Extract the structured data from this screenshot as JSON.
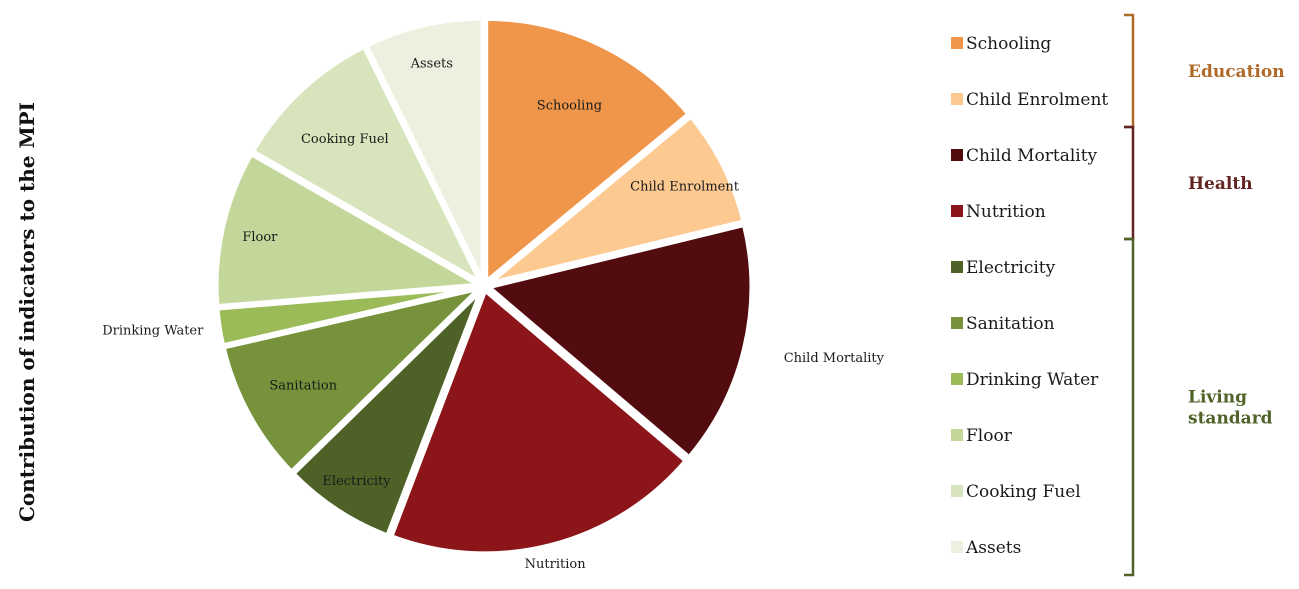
{
  "chart_data": {
    "type": "pie",
    "ylabel": "Contribution of indicators to the MPI",
    "legend_position": "right",
    "slices": [
      {
        "name": "Schooling",
        "value": 14.0,
        "color": "#f0964b"
      },
      {
        "name": "Child Enrolment",
        "value": 7.2,
        "color": "#fcc991"
      },
      {
        "name": "Child Mortality",
        "value": 15.0,
        "color": "#520c10"
      },
      {
        "name": "Nutrition",
        "value": 19.6,
        "color": "#8b1519"
      },
      {
        "name": "Electricity",
        "value": 6.9,
        "color": "#4e6227"
      },
      {
        "name": "Sanitation",
        "value": 8.7,
        "color": "#76933c"
      },
      {
        "name": "Drinking Water",
        "value": 2.3,
        "color": "#9bbb59"
      },
      {
        "name": "Floor",
        "value": 9.6,
        "color": "#c4d79b"
      },
      {
        "name": "Cooking Fuel",
        "value": 9.4,
        "color": "#d8e4bc"
      },
      {
        "name": "Assets",
        "value": 7.3,
        "color": "#ebf1de"
      }
    ],
    "groups": [
      {
        "label": "Education",
        "color": "#b06a28",
        "members": [
          "Schooling",
          "Child Enrolment"
        ]
      },
      {
        "label": "Health",
        "color": "#632523",
        "members": [
          "Child Mortality",
          "Nutrition"
        ]
      },
      {
        "label": "Living standard",
        "label_lines": [
          "Living",
          "standard"
        ],
        "color": "#4f6228",
        "members": [
          "Electricity",
          "Sanitation",
          "Drinking Water",
          "Floor",
          "Cooking Fuel",
          "Assets"
        ]
      }
    ]
  }
}
